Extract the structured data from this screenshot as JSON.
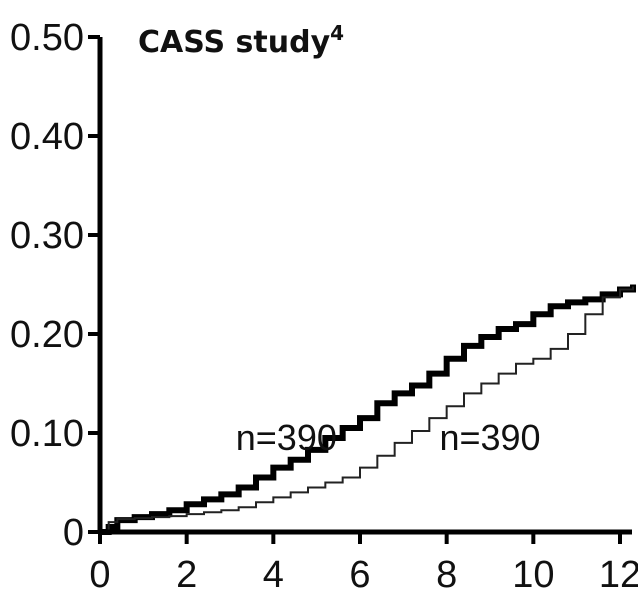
{
  "chart_data": {
    "type": "line",
    "title": "CASS study",
    "title_superscript": "4",
    "xlabel": "",
    "ylabel": "",
    "xlim": [
      0,
      12
    ],
    "ylim": [
      0,
      0.5
    ],
    "grid": false,
    "x_ticks": [
      0,
      2,
      4,
      6,
      8,
      10,
      12
    ],
    "x_tick_labels": [
      "0",
      "2",
      "4",
      "6",
      "8",
      "10",
      "12"
    ],
    "y_ticks": [
      0,
      0.1,
      0.2,
      0.3,
      0.4,
      0.5
    ],
    "y_tick_labels": [
      "0",
      "0.10",
      "0.20",
      "0.30",
      "0.40",
      "0.50"
    ],
    "series": [
      {
        "name": "thick",
        "color": "#000000",
        "x": [
          0,
          0.2,
          0.4,
          0.8,
          1.2,
          1.6,
          2.0,
          2.4,
          2.8,
          3.2,
          3.6,
          4.0,
          4.4,
          4.8,
          5.2,
          5.6,
          6.0,
          6.4,
          6.8,
          7.2,
          7.6,
          8.0,
          8.4,
          8.8,
          9.2,
          9.6,
          10.0,
          10.4,
          10.8,
          11.2,
          11.6,
          12.0,
          12.3
        ],
        "y": [
          0,
          0.005,
          0.012,
          0.015,
          0.018,
          0.022,
          0.028,
          0.033,
          0.038,
          0.045,
          0.055,
          0.065,
          0.073,
          0.083,
          0.095,
          0.105,
          0.115,
          0.13,
          0.14,
          0.148,
          0.16,
          0.175,
          0.188,
          0.197,
          0.205,
          0.21,
          0.22,
          0.228,
          0.232,
          0.235,
          0.24,
          0.245,
          0.25
        ]
      },
      {
        "name": "thin",
        "color": "#222222",
        "x": [
          0,
          0.2,
          0.4,
          0.8,
          1.2,
          1.6,
          2.0,
          2.4,
          2.8,
          3.2,
          3.6,
          4.0,
          4.4,
          4.8,
          5.2,
          5.6,
          6.0,
          6.4,
          6.8,
          7.2,
          7.6,
          8.0,
          8.4,
          8.8,
          9.2,
          9.6,
          10.0,
          10.4,
          10.8,
          11.2,
          11.6,
          12.0,
          12.3
        ],
        "y": [
          0,
          0.01,
          0.013,
          0.014,
          0.015,
          0.016,
          0.018,
          0.02,
          0.022,
          0.025,
          0.03,
          0.035,
          0.04,
          0.045,
          0.05,
          0.055,
          0.065,
          0.077,
          0.09,
          0.102,
          0.115,
          0.127,
          0.14,
          0.15,
          0.16,
          0.17,
          0.175,
          0.185,
          0.2,
          0.22,
          0.237,
          0.245,
          0.248
        ]
      }
    ],
    "annotations": [
      {
        "text": "n=390",
        "x": 4.3,
        "y": 0.095
      },
      {
        "text": "n=390",
        "x": 9.0,
        "y": 0.095
      }
    ]
  }
}
